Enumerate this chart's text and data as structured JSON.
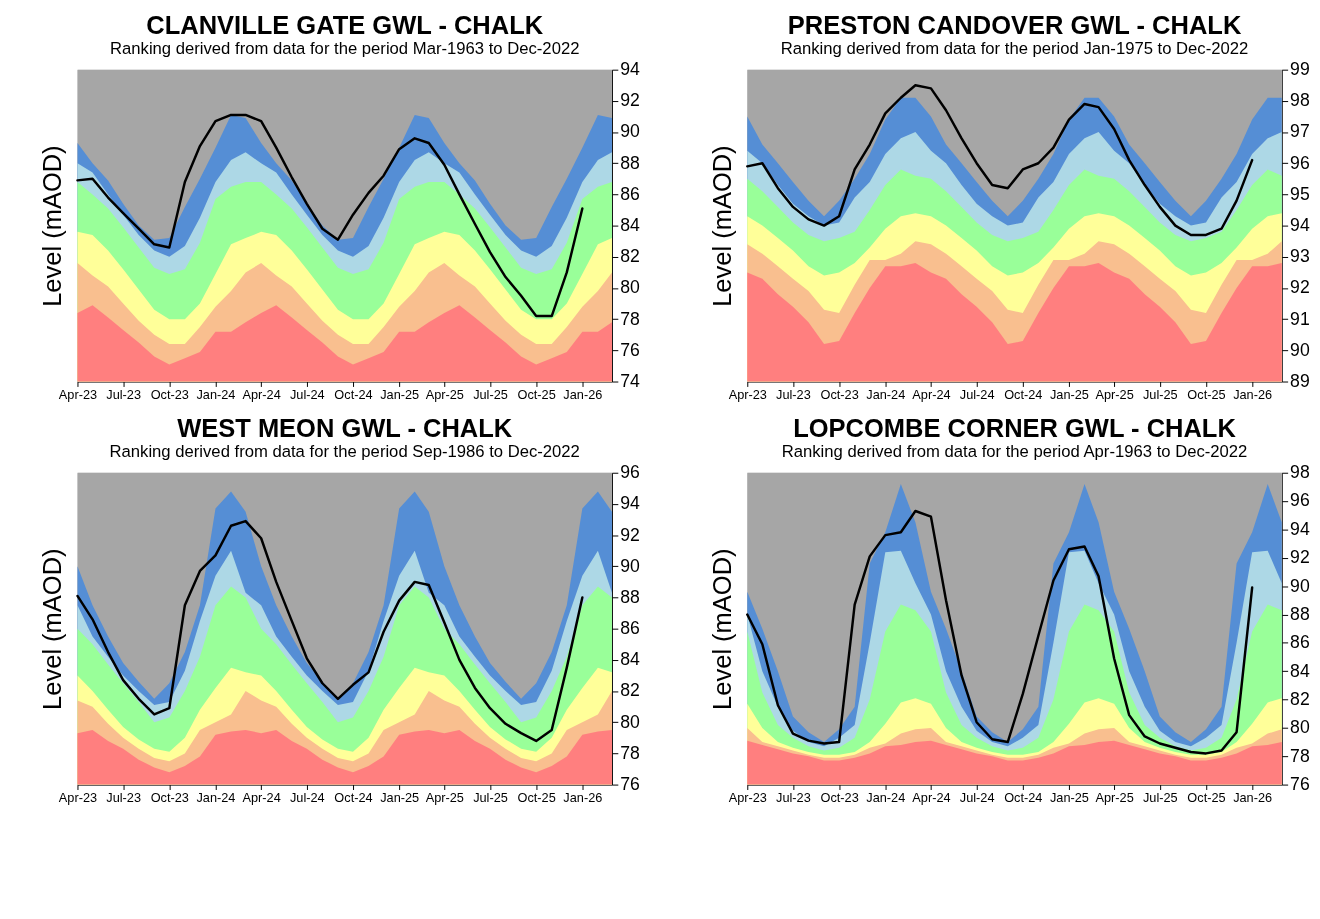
{
  "chart_data": [
    {
      "type": "area",
      "title": "CLANVILLE GATE GWL - CHALK",
      "subtitle": "Ranking derived from data for the period Mar-1963 to Dec-2022",
      "ylabel": "Level (mAOD)",
      "x": [
        "2023-04",
        "2023-05",
        "2023-06",
        "2023-07",
        "2023-08",
        "2023-09",
        "2023-10",
        "2023-11",
        "2023-12",
        "2024-01",
        "2024-02",
        "2024-03",
        "2024-04",
        "2024-05",
        "2024-06",
        "2024-07",
        "2024-08",
        "2024-09",
        "2024-10",
        "2024-11",
        "2024-12",
        "2025-01",
        "2025-02",
        "2025-03",
        "2025-04",
        "2025-05",
        "2025-06",
        "2025-07",
        "2025-08",
        "2025-09",
        "2025-10",
        "2025-11",
        "2025-12",
        "2026-01",
        "2026-02",
        "2026-03"
      ],
      "xlim": [
        "2023-04",
        "2026-03"
      ],
      "xticks": [
        {
          "value": "2023-04",
          "label": "Apr-23"
        },
        {
          "value": "2023-07",
          "label": "Jul-23"
        },
        {
          "value": "2023-10",
          "label": "Oct-23"
        },
        {
          "value": "2024-01",
          "label": "Jan-24"
        },
        {
          "value": "2024-04",
          "label": "Apr-24"
        },
        {
          "value": "2024-07",
          "label": "Jul-24"
        },
        {
          "value": "2024-10",
          "label": "Oct-24"
        },
        {
          "value": "2025-01",
          "label": "Jan-25"
        },
        {
          "value": "2025-04",
          "label": "Apr-25"
        },
        {
          "value": "2025-07",
          "label": "Jul-25"
        },
        {
          "value": "2025-10",
          "label": "Oct-25"
        },
        {
          "value": "2026-01",
          "label": "Jan-26"
        }
      ],
      "ylim": [
        74,
        94
      ],
      "bands": [
        {
          "axis": "y",
          "from": 74,
          "to": 94,
          "color": "#a6a6a6"
        }
      ],
      "yticks": [
        74,
        76,
        78,
        80,
        82,
        84,
        86,
        88,
        90,
        92,
        94
      ],
      "series": [
        {
          "color": "#ff7f7f",
          "values": [
            78.4,
            78.9,
            78.1,
            77.3,
            76.5,
            75.6,
            75.1,
            75.5,
            75.9,
            77.2,
            77.2,
            77.8,
            78.4,
            78.9,
            78.1,
            77.3,
            76.5,
            75.6,
            75.1,
            75.5,
            75.9,
            77.2,
            77.2,
            77.8,
            78.4,
            78.9,
            78.1,
            77.3,
            76.5,
            75.6,
            75.1,
            75.5,
            75.9,
            77.2,
            77.2,
            77.8
          ]
        },
        {
          "color": "#f9bf8f",
          "values": [
            81.6,
            80.8,
            80.1,
            79.0,
            77.9,
            77.0,
            76.4,
            76.4,
            77.5,
            78.8,
            79.8,
            81.0,
            81.6,
            80.8,
            80.1,
            79.0,
            77.9,
            77.0,
            76.4,
            76.4,
            77.5,
            78.8,
            79.8,
            81.0,
            81.6,
            80.8,
            80.1,
            79.0,
            77.9,
            77.0,
            76.4,
            76.4,
            77.5,
            78.8,
            79.8,
            81.0
          ]
        },
        {
          "color": "#ffff99",
          "values": [
            83.6,
            83.4,
            82.4,
            81.2,
            79.9,
            78.6,
            78.0,
            78.0,
            79.0,
            80.9,
            82.8,
            83.2,
            83.6,
            83.4,
            82.4,
            81.2,
            79.9,
            78.6,
            78.0,
            78.0,
            79.0,
            80.9,
            82.8,
            83.2,
            83.6,
            83.4,
            82.4,
            81.2,
            79.9,
            78.6,
            78.0,
            78.0,
            79.0,
            80.9,
            82.8,
            83.2
          ]
        },
        {
          "color": "#99ff99",
          "values": [
            86.8,
            86.0,
            85.1,
            83.9,
            82.6,
            81.3,
            80.9,
            81.2,
            82.9,
            85.7,
            86.5,
            86.8,
            86.8,
            86.0,
            85.1,
            83.9,
            82.6,
            81.3,
            80.9,
            81.2,
            82.9,
            85.7,
            86.5,
            86.8,
            86.8,
            86.0,
            85.1,
            83.9,
            82.6,
            81.3,
            80.9,
            81.2,
            82.9,
            85.7,
            86.5,
            86.8
          ]
        },
        {
          "color": "#add8e6",
          "values": [
            88.0,
            87.4,
            86.0,
            84.7,
            83.4,
            82.4,
            82.0,
            82.7,
            84.5,
            86.8,
            88.2,
            88.7,
            88.0,
            87.4,
            86.0,
            84.7,
            83.4,
            82.4,
            82.0,
            82.7,
            84.5,
            86.8,
            88.2,
            88.7,
            88.0,
            87.4,
            86.0,
            84.7,
            83.4,
            82.4,
            82.0,
            82.7,
            84.5,
            86.8,
            88.2,
            88.7
          ]
        },
        {
          "color": "#558ed5",
          "values": [
            89.3,
            88.0,
            86.9,
            85.4,
            84.0,
            83.1,
            83.2,
            85.2,
            87.0,
            89.0,
            91.1,
            90.9,
            89.3,
            88.0,
            86.9,
            85.4,
            84.0,
            83.1,
            83.2,
            85.2,
            87.0,
            89.0,
            91.1,
            90.9,
            89.3,
            88.0,
            86.9,
            85.4,
            84.0,
            83.1,
            83.2,
            85.2,
            87.0,
            89.0,
            91.1,
            90.9
          ]
        },
        {
          "type": "line",
          "color": "#000000",
          "x": [
            "2023-04",
            "2023-05",
            "2023-06",
            "2023-07",
            "2023-08",
            "2023-09",
            "2023-10",
            "2023-11",
            "2023-12",
            "2024-01",
            "2024-02",
            "2024-03",
            "2024-04",
            "2024-05",
            "2024-06",
            "2024-07",
            "2024-08",
            "2024-09",
            "2024-10",
            "2024-11",
            "2024-12",
            "2025-01",
            "2025-02",
            "2025-03",
            "2025-04",
            "2025-05",
            "2025-06",
            "2025-07",
            "2025-08",
            "2025-09",
            "2025-10",
            "2025-11",
            "2025-12",
            "2026-01"
          ],
          "values": [
            86.9,
            87.0,
            85.8,
            84.8,
            83.8,
            82.8,
            82.6,
            86.8,
            89.1,
            90.7,
            91.1,
            91.1,
            90.7,
            89.0,
            87.1,
            85.4,
            83.8,
            83.1,
            84.7,
            86.1,
            87.2,
            88.9,
            89.6,
            89.3,
            87.9,
            86.0,
            84.1,
            82.3,
            80.7,
            79.5,
            78.2,
            78.2,
            81.0,
            85.1
          ]
        }
      ]
    },
    {
      "type": "area",
      "title": "PRESTON CANDOVER GWL - CHALK",
      "subtitle": "Ranking derived from data for the period Jan-1975 to Dec-2022",
      "ylabel": "Level (mAOD)",
      "x": [
        "2023-04",
        "2023-05",
        "2023-06",
        "2023-07",
        "2023-08",
        "2023-09",
        "2023-10",
        "2023-11",
        "2023-12",
        "2024-01",
        "2024-02",
        "2024-03",
        "2024-04",
        "2024-05",
        "2024-06",
        "2024-07",
        "2024-08",
        "2024-09",
        "2024-10",
        "2024-11",
        "2024-12",
        "2025-01",
        "2025-02",
        "2025-03",
        "2025-04",
        "2025-05",
        "2025-06",
        "2025-07",
        "2025-08",
        "2025-09",
        "2025-10",
        "2025-11",
        "2025-12",
        "2026-01",
        "2026-02",
        "2026-03"
      ],
      "xlim": [
        "2023-04",
        "2026-03"
      ],
      "xticks": [
        {
          "value": "2023-04",
          "label": "Apr-23"
        },
        {
          "value": "2023-07",
          "label": "Jul-23"
        },
        {
          "value": "2023-10",
          "label": "Oct-23"
        },
        {
          "value": "2024-01",
          "label": "Jan-24"
        },
        {
          "value": "2024-04",
          "label": "Apr-24"
        },
        {
          "value": "2024-07",
          "label": "Jul-24"
        },
        {
          "value": "2024-10",
          "label": "Oct-24"
        },
        {
          "value": "2025-01",
          "label": "Jan-25"
        },
        {
          "value": "2025-04",
          "label": "Apr-25"
        },
        {
          "value": "2025-07",
          "label": "Jul-25"
        },
        {
          "value": "2025-10",
          "label": "Oct-25"
        },
        {
          "value": "2026-01",
          "label": "Jan-26"
        }
      ],
      "ylim": [
        89,
        99
      ],
      "bands": [
        {
          "axis": "y",
          "from": 89,
          "to": 99,
          "color": "#a6a6a6"
        }
      ],
      "yticks": [
        89,
        90,
        91,
        92,
        93,
        94,
        95,
        96,
        97,
        98,
        99
      ],
      "series": [
        {
          "color": "#ff7f7f",
          "values": [
            92.5,
            92.3,
            91.8,
            91.4,
            90.9,
            90.2,
            90.3,
            91.2,
            92.0,
            92.7,
            92.7,
            92.8,
            92.5,
            92.3,
            91.8,
            91.4,
            90.9,
            90.2,
            90.3,
            91.2,
            92.0,
            92.7,
            92.7,
            92.8,
            92.5,
            92.3,
            91.8,
            91.4,
            90.9,
            90.2,
            90.3,
            91.2,
            92.0,
            92.7,
            92.7,
            92.8
          ]
        },
        {
          "color": "#f9bf8f",
          "values": [
            93.4,
            93.1,
            92.7,
            92.3,
            91.9,
            91.3,
            91.2,
            92.1,
            92.9,
            92.9,
            93.1,
            93.5,
            93.4,
            93.1,
            92.7,
            92.3,
            91.9,
            91.3,
            91.2,
            92.1,
            92.9,
            92.9,
            93.1,
            93.5,
            93.4,
            93.1,
            92.7,
            92.3,
            91.9,
            91.3,
            91.2,
            92.1,
            92.9,
            92.9,
            93.1,
            93.5
          ]
        },
        {
          "color": "#ffff99",
          "values": [
            94.3,
            94.0,
            93.6,
            93.2,
            92.7,
            92.4,
            92.5,
            92.8,
            93.3,
            93.9,
            94.3,
            94.4,
            94.3,
            94.0,
            93.6,
            93.2,
            92.7,
            92.4,
            92.5,
            92.8,
            93.3,
            93.9,
            94.3,
            94.4,
            94.3,
            94.0,
            93.6,
            93.2,
            92.7,
            92.4,
            92.5,
            92.8,
            93.3,
            93.9,
            94.3,
            94.4
          ]
        },
        {
          "color": "#99ff99",
          "values": [
            95.5,
            95.1,
            94.6,
            94.1,
            93.7,
            93.5,
            93.6,
            93.8,
            94.5,
            95.3,
            95.8,
            95.6,
            95.5,
            95.1,
            94.6,
            94.1,
            93.7,
            93.5,
            93.6,
            93.8,
            94.5,
            95.3,
            95.8,
            95.6,
            95.5,
            95.1,
            94.6,
            94.1,
            93.7,
            93.5,
            93.6,
            93.8,
            94.5,
            95.3,
            95.8,
            95.6
          ]
        },
        {
          "color": "#add8e6",
          "values": [
            96.4,
            96.0,
            95.3,
            94.7,
            94.3,
            94.0,
            94.1,
            94.9,
            95.4,
            96.3,
            96.8,
            97.0,
            96.4,
            96.0,
            95.3,
            94.7,
            94.3,
            94.0,
            94.1,
            94.9,
            95.4,
            96.3,
            96.8,
            97.0,
            96.4,
            96.0,
            95.3,
            94.7,
            94.3,
            94.0,
            94.1,
            94.9,
            95.4,
            96.3,
            96.8,
            97.0
          ]
        },
        {
          "color": "#558ed5",
          "values": [
            97.5,
            96.6,
            96.0,
            95.4,
            94.8,
            94.3,
            94.8,
            95.5,
            96.3,
            97.4,
            98.1,
            98.1,
            97.5,
            96.6,
            96.0,
            95.4,
            94.8,
            94.3,
            94.8,
            95.5,
            96.3,
            97.4,
            98.1,
            98.1,
            97.5,
            96.6,
            96.0,
            95.4,
            94.8,
            94.3,
            94.8,
            95.5,
            96.3,
            97.4,
            98.1,
            98.1
          ]
        },
        {
          "type": "line",
          "color": "#000000",
          "x": [
            "2023-04",
            "2023-05",
            "2023-06",
            "2023-07",
            "2023-08",
            "2023-09",
            "2023-10",
            "2023-11",
            "2023-12",
            "2024-01",
            "2024-02",
            "2024-03",
            "2024-04",
            "2024-05",
            "2024-06",
            "2024-07",
            "2024-08",
            "2024-09",
            "2024-10",
            "2024-11",
            "2024-12",
            "2025-01",
            "2025-02",
            "2025-03",
            "2025-04",
            "2025-05",
            "2025-06",
            "2025-07",
            "2025-08",
            "2025-09",
            "2025-10",
            "2025-11",
            "2025-12",
            "2026-01"
          ],
          "values": [
            95.9,
            96.0,
            95.2,
            94.6,
            94.2,
            94.0,
            94.3,
            95.8,
            96.6,
            97.6,
            98.1,
            98.5,
            98.4,
            97.7,
            96.8,
            96.0,
            95.3,
            95.2,
            95.8,
            96.0,
            96.5,
            97.4,
            97.9,
            97.8,
            97.1,
            96.1,
            95.3,
            94.6,
            94.0,
            93.7,
            93.7,
            93.9,
            94.8,
            96.1
          ]
        }
      ]
    },
    {
      "type": "area",
      "title": "WEST MEON GWL - CHALK",
      "subtitle": "Ranking derived from data for the period Sep-1986 to Dec-2022",
      "ylabel": "Level (mAOD)",
      "x": [
        "2023-04",
        "2023-05",
        "2023-06",
        "2023-07",
        "2023-08",
        "2023-09",
        "2023-10",
        "2023-11",
        "2023-12",
        "2024-01",
        "2024-02",
        "2024-03",
        "2024-04",
        "2024-05",
        "2024-06",
        "2024-07",
        "2024-08",
        "2024-09",
        "2024-10",
        "2024-11",
        "2024-12",
        "2025-01",
        "2025-02",
        "2025-03",
        "2025-04",
        "2025-05",
        "2025-06",
        "2025-07",
        "2025-08",
        "2025-09",
        "2025-10",
        "2025-11",
        "2025-12",
        "2026-01",
        "2026-02",
        "2026-03"
      ],
      "xlim": [
        "2023-04",
        "2026-03"
      ],
      "xticks": [
        {
          "value": "2023-04",
          "label": "Apr-23"
        },
        {
          "value": "2023-07",
          "label": "Jul-23"
        },
        {
          "value": "2023-10",
          "label": "Oct-23"
        },
        {
          "value": "2024-01",
          "label": "Jan-24"
        },
        {
          "value": "2024-04",
          "label": "Apr-24"
        },
        {
          "value": "2024-07",
          "label": "Jul-24"
        },
        {
          "value": "2024-10",
          "label": "Oct-24"
        },
        {
          "value": "2025-01",
          "label": "Jan-25"
        },
        {
          "value": "2025-04",
          "label": "Apr-25"
        },
        {
          "value": "2025-07",
          "label": "Jul-25"
        },
        {
          "value": "2025-10",
          "label": "Oct-25"
        },
        {
          "value": "2026-01",
          "label": "Jan-26"
        }
      ],
      "ylim": [
        76,
        96
      ],
      "bands": [
        {
          "axis": "y",
          "from": 76,
          "to": 96,
          "color": "#a6a6a6"
        }
      ],
      "yticks": [
        76,
        78,
        80,
        82,
        84,
        86,
        88,
        90,
        92,
        94,
        96
      ],
      "series": [
        {
          "color": "#ff7f7f",
          "values": [
            79.3,
            79.5,
            78.8,
            78.3,
            77.6,
            77.1,
            76.8,
            77.2,
            77.8,
            79.2,
            79.4,
            79.5,
            79.3,
            79.5,
            78.8,
            78.3,
            77.6,
            77.1,
            76.8,
            77.2,
            77.8,
            79.2,
            79.4,
            79.5,
            79.3,
            79.5,
            78.8,
            78.3,
            77.6,
            77.1,
            76.8,
            77.2,
            77.8,
            79.2,
            79.4,
            79.5
          ]
        },
        {
          "color": "#f9bf8f",
          "values": [
            81.4,
            81.0,
            79.9,
            79.0,
            78.3,
            77.7,
            77.5,
            78.0,
            79.5,
            80.0,
            80.5,
            82.0,
            81.4,
            81.0,
            79.9,
            79.0,
            78.3,
            77.7,
            77.5,
            78.0,
            79.5,
            80.0,
            80.5,
            82.0,
            81.4,
            81.0,
            79.9,
            79.0,
            78.3,
            77.7,
            77.5,
            78.0,
            79.5,
            80.0,
            80.5,
            82.0
          ]
        },
        {
          "color": "#ffff99",
          "values": [
            83.0,
            82.0,
            80.8,
            79.7,
            78.9,
            78.3,
            78.1,
            79.0,
            80.8,
            82.2,
            83.5,
            83.2,
            83.0,
            82.0,
            80.8,
            79.7,
            78.9,
            78.3,
            78.1,
            79.0,
            80.8,
            82.2,
            83.5,
            83.2,
            83.0,
            82.0,
            80.8,
            79.7,
            78.9,
            78.3,
            78.1,
            79.0,
            80.8,
            82.2,
            83.5,
            83.2
          ]
        },
        {
          "color": "#99ff99",
          "values": [
            86.0,
            85.0,
            83.7,
            82.5,
            81.3,
            80.0,
            80.3,
            82.0,
            84.2,
            87.5,
            88.7,
            88.0,
            86.0,
            85.0,
            83.7,
            82.5,
            81.3,
            80.0,
            80.3,
            82.0,
            84.2,
            87.5,
            88.7,
            88.0,
            86.0,
            85.0,
            83.7,
            82.5,
            81.3,
            80.0,
            80.3,
            82.0,
            84.2,
            87.5,
            88.7,
            88.0
          ]
        },
        {
          "color": "#add8e6",
          "values": [
            87.5,
            85.5,
            84.2,
            83.0,
            82.0,
            81.1,
            81.3,
            83.3,
            86.5,
            89.4,
            91.0,
            88.3,
            87.5,
            85.5,
            84.2,
            83.0,
            82.0,
            81.1,
            81.3,
            83.3,
            86.5,
            89.4,
            91.0,
            88.3,
            87.5,
            85.5,
            84.2,
            83.0,
            82.0,
            81.1,
            81.3,
            83.3,
            86.5,
            89.4,
            91.0,
            88.3
          ]
        },
        {
          "color": "#558ed5",
          "values": [
            90.0,
            87.5,
            85.5,
            83.8,
            82.6,
            81.5,
            82.5,
            84.5,
            87.5,
            93.7,
            94.8,
            93.5,
            90.0,
            87.5,
            85.5,
            83.8,
            82.6,
            81.5,
            82.5,
            84.5,
            87.5,
            93.7,
            94.8,
            93.5,
            90.0,
            87.5,
            85.5,
            83.8,
            82.6,
            81.5,
            82.5,
            84.5,
            87.5,
            93.7,
            94.8,
            93.5
          ]
        },
        {
          "type": "line",
          "color": "#000000",
          "x": [
            "2023-04",
            "2023-05",
            "2023-06",
            "2023-07",
            "2023-08",
            "2023-09",
            "2023-10",
            "2023-11",
            "2023-12",
            "2024-01",
            "2024-02",
            "2024-03",
            "2024-04",
            "2024-05",
            "2024-06",
            "2024-07",
            "2024-08",
            "2024-09",
            "2024-10",
            "2024-11",
            "2024-12",
            "2025-01",
            "2025-02",
            "2025-03",
            "2025-04",
            "2025-05",
            "2025-06",
            "2025-07",
            "2025-08",
            "2025-09",
            "2025-10",
            "2025-11",
            "2025-12",
            "2026-01"
          ],
          "values": [
            88.1,
            86.6,
            84.5,
            82.7,
            81.5,
            80.5,
            80.9,
            87.5,
            89.7,
            90.7,
            92.6,
            92.9,
            91.8,
            89.0,
            86.5,
            84.1,
            82.5,
            81.5,
            82.4,
            83.2,
            85.8,
            87.8,
            89.0,
            88.8,
            86.4,
            84.0,
            82.2,
            80.9,
            79.9,
            79.3,
            78.8,
            79.5,
            83.5,
            88.0
          ]
        }
      ]
    },
    {
      "type": "area",
      "title": "LOPCOMBE CORNER GWL - CHALK",
      "subtitle": "Ranking derived from data for the period Apr-1963 to Dec-2022",
      "ylabel": "Level (mAOD)",
      "x": [
        "2023-04",
        "2023-05",
        "2023-06",
        "2023-07",
        "2023-08",
        "2023-09",
        "2023-10",
        "2023-11",
        "2023-12",
        "2024-01",
        "2024-02",
        "2024-03",
        "2024-04",
        "2024-05",
        "2024-06",
        "2024-07",
        "2024-08",
        "2024-09",
        "2024-10",
        "2024-11",
        "2024-12",
        "2025-01",
        "2025-02",
        "2025-03",
        "2025-04",
        "2025-05",
        "2025-06",
        "2025-07",
        "2025-08",
        "2025-09",
        "2025-10",
        "2025-11",
        "2025-12",
        "2026-01",
        "2026-02",
        "2026-03"
      ],
      "xlim": [
        "2023-04",
        "2026-03"
      ],
      "xticks": [
        {
          "value": "2023-04",
          "label": "Apr-23"
        },
        {
          "value": "2023-07",
          "label": "Jul-23"
        },
        {
          "value": "2023-10",
          "label": "Oct-23"
        },
        {
          "value": "2024-01",
          "label": "Jan-24"
        },
        {
          "value": "2024-04",
          "label": "Apr-24"
        },
        {
          "value": "2024-07",
          "label": "Jul-24"
        },
        {
          "value": "2024-10",
          "label": "Oct-24"
        },
        {
          "value": "2025-01",
          "label": "Jan-25"
        },
        {
          "value": "2025-04",
          "label": "Apr-25"
        },
        {
          "value": "2025-07",
          "label": "Jul-25"
        },
        {
          "value": "2025-10",
          "label": "Oct-25"
        },
        {
          "value": "2026-01",
          "label": "Jan-26"
        }
      ],
      "ylim": [
        76,
        98
      ],
      "bands": [
        {
          "axis": "y",
          "from": 76,
          "to": 98,
          "color": "#a6a6a6"
        }
      ],
      "yticks": [
        76,
        78,
        80,
        82,
        84,
        86,
        88,
        90,
        92,
        94,
        96,
        98
      ],
      "series": [
        {
          "color": "#ff7f7f",
          "values": [
            79.1,
            78.8,
            78.5,
            78.2,
            78.0,
            77.7,
            77.7,
            77.9,
            78.2,
            78.7,
            78.8,
            79.0,
            79.1,
            78.8,
            78.5,
            78.2,
            78.0,
            77.7,
            77.7,
            77.9,
            78.2,
            78.7,
            78.8,
            79.0,
            79.1,
            78.8,
            78.5,
            78.2,
            78.0,
            77.7,
            77.7,
            77.9,
            78.2,
            78.7,
            78.8,
            79.0
          ]
        },
        {
          "color": "#f9bf8f",
          "values": [
            80.0,
            79.0,
            78.7,
            78.4,
            78.1,
            77.9,
            77.9,
            78.1,
            78.6,
            78.9,
            79.6,
            79.9,
            80.0,
            79.0,
            78.7,
            78.4,
            78.1,
            77.9,
            77.9,
            78.1,
            78.6,
            78.9,
            79.6,
            79.9,
            80.0,
            79.0,
            78.7,
            78.4,
            78.1,
            77.9,
            77.9,
            78.1,
            78.6,
            78.9,
            79.6,
            79.9
          ]
        },
        {
          "color": "#ffff99",
          "values": [
            81.7,
            80.0,
            79.0,
            78.6,
            78.3,
            78.1,
            78.1,
            78.3,
            79.0,
            80.3,
            81.8,
            82.1,
            81.7,
            80.0,
            79.0,
            78.6,
            78.3,
            78.1,
            78.1,
            78.3,
            79.0,
            80.3,
            81.8,
            82.1,
            81.7,
            80.0,
            79.0,
            78.6,
            78.3,
            78.1,
            78.1,
            78.3,
            79.0,
            80.3,
            81.8,
            82.1
          ]
        },
        {
          "color": "#99ff99",
          "values": [
            86.8,
            82.5,
            80.2,
            79.3,
            78.7,
            78.4,
            78.6,
            79.3,
            82.0,
            86.8,
            88.7,
            88.3,
            86.8,
            82.5,
            80.2,
            79.3,
            78.7,
            78.4,
            78.6,
            79.3,
            82.0,
            86.8,
            88.7,
            88.3,
            86.8,
            82.5,
            80.2,
            79.3,
            78.7,
            78.4,
            78.6,
            79.3,
            82.0,
            86.8,
            88.7,
            88.3
          ]
        },
        {
          "color": "#add8e6",
          "values": [
            88.0,
            84.0,
            81.5,
            79.8,
            79.0,
            78.7,
            79.3,
            80.2,
            86.0,
            92.4,
            92.5,
            90.2,
            88.0,
            84.0,
            81.5,
            79.8,
            79.0,
            78.7,
            79.3,
            80.2,
            86.0,
            92.4,
            92.5,
            90.2,
            88.0,
            84.0,
            81.5,
            79.8,
            79.0,
            78.7,
            79.3,
            80.2,
            86.0,
            92.4,
            92.5,
            90.2
          ]
        },
        {
          "color": "#558ed5",
          "values": [
            89.6,
            87.0,
            84.0,
            80.8,
            79.7,
            79.0,
            79.9,
            81.5,
            91.6,
            93.8,
            97.2,
            94.5,
            89.6,
            87.0,
            84.0,
            80.8,
            79.7,
            79.0,
            79.9,
            81.5,
            91.6,
            93.8,
            97.2,
            94.5,
            89.6,
            87.0,
            84.0,
            80.8,
            79.7,
            79.0,
            79.9,
            81.5,
            91.6,
            93.8,
            97.2,
            94.5
          ]
        },
        {
          "type": "line",
          "color": "#000000",
          "x": [
            "2023-04",
            "2023-05",
            "2023-06",
            "2023-07",
            "2023-08",
            "2023-09",
            "2023-10",
            "2023-11",
            "2023-12",
            "2024-01",
            "2024-02",
            "2024-03",
            "2024-04",
            "2024-05",
            "2024-06",
            "2024-07",
            "2024-08",
            "2024-09",
            "2024-10",
            "2024-11",
            "2024-12",
            "2025-01",
            "2025-02",
            "2025-03",
            "2025-04",
            "2025-05",
            "2025-06",
            "2025-07",
            "2025-08",
            "2025-09",
            "2025-10",
            "2025-11",
            "2025-12",
            "2026-01"
          ],
          "values": [
            88.0,
            85.9,
            81.6,
            79.6,
            79.1,
            78.9,
            79.0,
            88.7,
            92.1,
            93.6,
            93.8,
            95.3,
            94.9,
            89.0,
            83.7,
            80.4,
            79.2,
            79.0,
            82.4,
            86.5,
            90.4,
            92.6,
            92.8,
            90.7,
            84.9,
            80.9,
            79.4,
            78.9,
            78.6,
            78.3,
            78.2,
            78.4,
            79.7,
            89.9
          ]
        }
      ]
    }
  ]
}
